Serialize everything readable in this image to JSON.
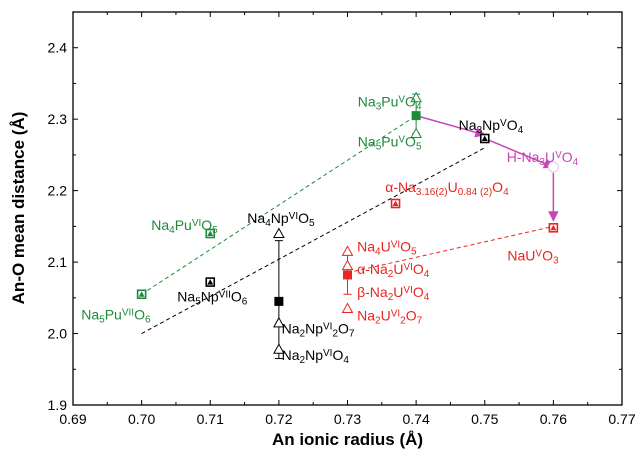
{
  "colors": {
    "pu": "#1e8a3a",
    "np": "#000000",
    "u": "#e8261f",
    "hna3u": "#c845b8"
  },
  "chart_data": {
    "type": "scatter",
    "xlabel": "An ionic radius (Å)",
    "ylabel": "An-O mean distance (Å)",
    "xlim": [
      0.69,
      0.77
    ],
    "ylim": [
      1.9,
      2.45
    ],
    "xticks": [
      "0.69",
      "0.70",
      "0.71",
      "0.72",
      "0.73",
      "0.74",
      "0.75",
      "0.76",
      "0.77"
    ],
    "yticks": [
      "1.9",
      "2.0",
      "2.1",
      "2.2",
      "2.3",
      "2.4"
    ],
    "series": [
      {
        "group": "pu",
        "color": "#1e8a3a",
        "points": [
          {
            "x": 0.7,
            "y": 2.055,
            "marker": "open-triangle-square"
          },
          {
            "x": 0.71,
            "y": 2.14,
            "marker": "open-triangle-square"
          },
          {
            "x": 0.74,
            "y": 2.305,
            "err": [
              2.28,
              2.335
            ],
            "marker": "filled-square"
          },
          {
            "x": 0.74,
            "y": 2.33,
            "marker": "open-triangle"
          },
          {
            "x": 0.74,
            "y": 2.28,
            "marker": "open-triangle"
          }
        ]
      },
      {
        "group": "np",
        "color": "#000000",
        "points": [
          {
            "x": 0.71,
            "y": 2.072,
            "marker": "open-triangle-square"
          },
          {
            "x": 0.72,
            "y": 2.045,
            "err": [
              1.965,
              2.13
            ],
            "marker": "filled-square"
          },
          {
            "x": 0.72,
            "y": 2.14,
            "marker": "open-triangle"
          },
          {
            "x": 0.72,
            "y": 2.015,
            "marker": "open-triangle"
          },
          {
            "x": 0.72,
            "y": 1.978,
            "marker": "open-triangle"
          },
          {
            "x": 0.75,
            "y": 2.273,
            "marker": "open-triangle-square"
          }
        ]
      },
      {
        "group": "u",
        "color": "#e8261f",
        "points": [
          {
            "x": 0.737,
            "y": 2.182,
            "marker": "open-triangle-square"
          },
          {
            "x": 0.73,
            "y": 2.082,
            "err": [
              2.055,
              2.11
            ],
            "marker": "filled-square"
          },
          {
            "x": 0.73,
            "y": 2.115,
            "marker": "open-triangle"
          },
          {
            "x": 0.73,
            "y": 2.095,
            "marker": "open-triangle"
          },
          {
            "x": 0.73,
            "y": 2.035,
            "marker": "open-triangle"
          },
          {
            "x": 0.76,
            "y": 2.148,
            "marker": "open-triangle-square"
          }
        ]
      },
      {
        "group": "hna3u",
        "color": "#c845b8",
        "points": [
          {
            "x": 0.76,
            "y": 2.233,
            "marker": "faint-circle"
          }
        ]
      }
    ],
    "trend_lines": [
      {
        "group": "pu",
        "from": [
          0.7,
          2.055
        ],
        "to": [
          0.74,
          2.305
        ]
      },
      {
        "group": "np",
        "from": [
          0.7,
          2.0
        ],
        "to": [
          0.75,
          2.26
        ]
      },
      {
        "group": "u",
        "from": [
          0.73,
          2.085
        ],
        "to": [
          0.76,
          2.15
        ]
      }
    ],
    "arrows": [
      {
        "from": [
          0.74,
          2.305
        ],
        "to": [
          0.75,
          2.278
        ]
      },
      {
        "from": [
          0.75,
          2.273
        ],
        "to": [
          0.76,
          2.233
        ]
      },
      {
        "from": [
          0.76,
          2.225
        ],
        "to": [
          0.76,
          2.158
        ]
      }
    ],
    "annotations": [
      {
        "id": "na3puvo4",
        "group": "pu",
        "x": 0.7315,
        "y": 2.318,
        "parts": [
          [
            "Na"
          ],
          [
            "3",
            "sub"
          ],
          [
            "Pu"
          ],
          [
            "V",
            "sup"
          ],
          [
            "O"
          ],
          [
            "4",
            "sub"
          ]
        ]
      },
      {
        "id": "na5puvo5",
        "group": "pu",
        "x": 0.7315,
        "y": 2.262,
        "parts": [
          [
            "Na"
          ],
          [
            "5",
            "sub"
          ],
          [
            "Pu"
          ],
          [
            "V",
            "sup"
          ],
          [
            "O"
          ],
          [
            "5",
            "sub"
          ]
        ]
      },
      {
        "id": "na4puvio5",
        "group": "pu",
        "x": 0.7014,
        "y": 2.145,
        "parts": [
          [
            "Na"
          ],
          [
            "4",
            "sub"
          ],
          [
            "Pu"
          ],
          [
            "VI",
            "sup"
          ],
          [
            "O"
          ],
          [
            "5",
            "sub"
          ]
        ]
      },
      {
        "id": "na5puviio6",
        "group": "pu",
        "x": 0.6912,
        "y": 2.02,
        "parts": [
          [
            "Na"
          ],
          [
            "5",
            "sub"
          ],
          [
            "Pu"
          ],
          [
            "VII",
            "sup"
          ],
          [
            "O"
          ],
          [
            "6",
            "sub"
          ]
        ]
      },
      {
        "id": "na4npo5",
        "group": "np",
        "x": 0.7154,
        "y": 2.155,
        "parts": [
          [
            "Na"
          ],
          [
            "4",
            "sub"
          ],
          [
            "Np"
          ],
          [
            "VI",
            "sup"
          ],
          [
            "O"
          ],
          [
            "5",
            "sub"
          ]
        ]
      },
      {
        "id": "na5npviio6",
        "group": "np",
        "x": 0.7052,
        "y": 2.045,
        "parts": [
          [
            "Na"
          ],
          [
            "5",
            "sub"
          ],
          [
            "Np"
          ],
          [
            "VII",
            "sup"
          ],
          [
            "O"
          ],
          [
            "6",
            "sub"
          ]
        ]
      },
      {
        "id": "na2npvi2o7",
        "group": "np",
        "x": 0.7204,
        "y": 2.0,
        "parts": [
          [
            "Na"
          ],
          [
            "2",
            "sub"
          ],
          [
            "Np"
          ],
          [
            "VI",
            "sup"
          ],
          [
            "2",
            "sub"
          ],
          [
            "O"
          ],
          [
            "7",
            "sub"
          ]
        ]
      },
      {
        "id": "na2npvio4",
        "group": "np",
        "x": 0.7204,
        "y": 1.963,
        "parts": [
          [
            "Na"
          ],
          [
            "2",
            "sub"
          ],
          [
            "Np"
          ],
          [
            "VI",
            "sup"
          ],
          [
            "O"
          ],
          [
            "4",
            "sub"
          ]
        ]
      },
      {
        "id": "na3npvo4",
        "group": "np",
        "x": 0.7462,
        "y": 2.285,
        "parts": [
          [
            "Na"
          ],
          [
            "3",
            "sub"
          ],
          [
            "Np"
          ],
          [
            "V",
            "sup"
          ],
          [
            "O"
          ],
          [
            "4",
            "sub"
          ]
        ]
      },
      {
        "id": "alpha-na-u-o4",
        "group": "u",
        "x": 0.7355,
        "y": 2.198,
        "parts": [
          [
            "α-Na"
          ],
          [
            "3.16(2)",
            "sub"
          ],
          [
            "U"
          ],
          [
            "0.84 (2)",
            "sub"
          ],
          [
            "O"
          ],
          [
            "4",
            "sub"
          ]
        ]
      },
      {
        "id": "na4uvio5",
        "group": "u",
        "x": 0.7314,
        "y": 2.115,
        "parts": [
          [
            "Na"
          ],
          [
            "4",
            "sub"
          ],
          [
            "U"
          ],
          [
            "VI",
            "sup"
          ],
          [
            "O"
          ],
          [
            "5",
            "sub"
          ]
        ]
      },
      {
        "id": "alpha-na2uvio4",
        "group": "u",
        "x": 0.7314,
        "y": 2.083,
        "parts": [
          [
            "α-Na"
          ],
          [
            "2",
            "sub"
          ],
          [
            "U"
          ],
          [
            "VI",
            "sup"
          ],
          [
            "O"
          ],
          [
            "4",
            "sub"
          ]
        ]
      },
      {
        "id": "beta-na2uvio4",
        "group": "u",
        "x": 0.7314,
        "y": 2.051,
        "parts": [
          [
            "β-Na"
          ],
          [
            "2",
            "sub"
          ],
          [
            "U"
          ],
          [
            "VI",
            "sup"
          ],
          [
            "O"
          ],
          [
            "4",
            "sub"
          ]
        ]
      },
      {
        "id": "na2uvi2o7",
        "group": "u",
        "x": 0.7314,
        "y": 2.018,
        "parts": [
          [
            "Na"
          ],
          [
            "2",
            "sub"
          ],
          [
            "U"
          ],
          [
            "VI",
            "sup"
          ],
          [
            "2",
            "sub"
          ],
          [
            "O"
          ],
          [
            "7",
            "sub"
          ]
        ]
      },
      {
        "id": "nauvo3",
        "group": "u",
        "x": 0.7533,
        "y": 2.102,
        "parts": [
          [
            "NaU"
          ],
          [
            "V",
            "sup"
          ],
          [
            "O"
          ],
          [
            "3",
            "sub"
          ]
        ]
      },
      {
        "id": "h-na3uvo4",
        "group": "hna3u",
        "x": 0.7532,
        "y": 2.24,
        "parts": [
          [
            "H-Na"
          ],
          [
            "3",
            "sub"
          ],
          [
            "U"
          ],
          [
            "V",
            "sup"
          ],
          [
            "O"
          ],
          [
            "4",
            "sub"
          ]
        ]
      }
    ]
  }
}
